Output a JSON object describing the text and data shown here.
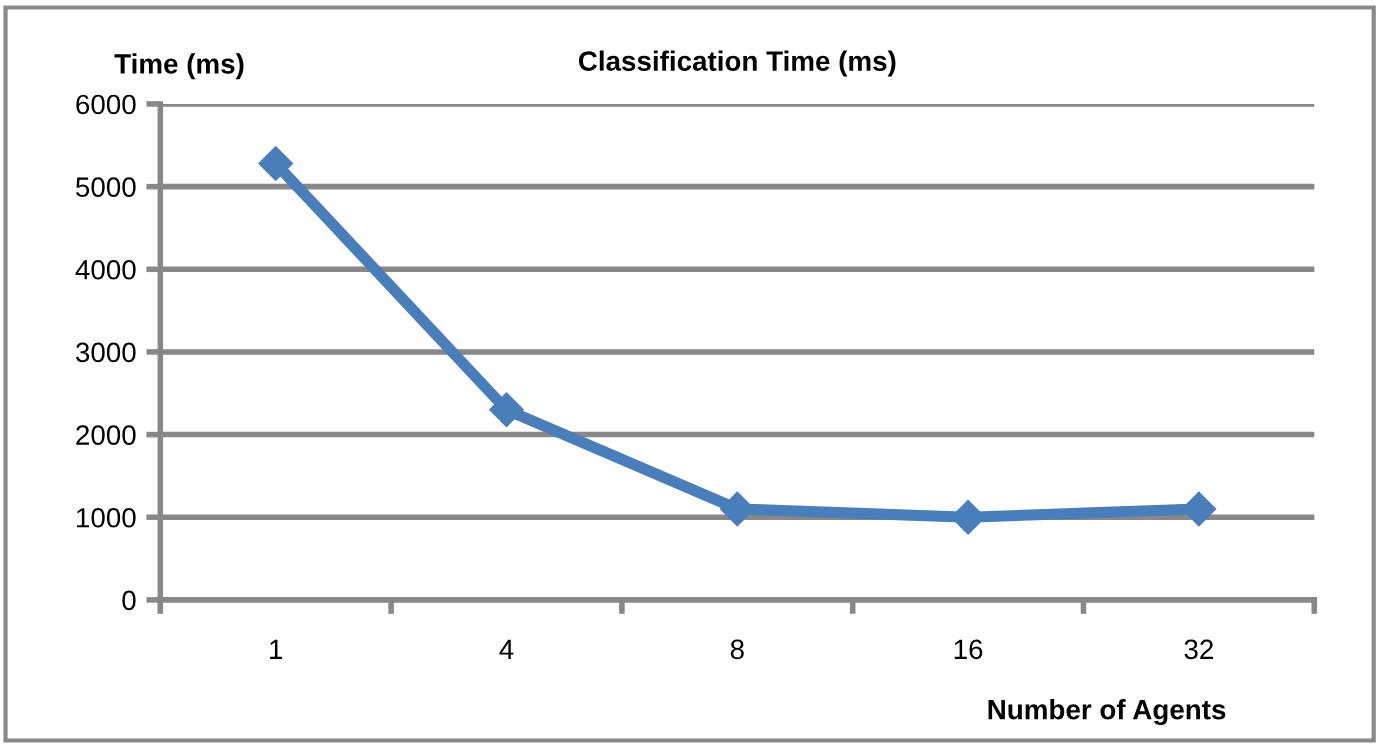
{
  "chart_data": {
    "type": "line",
    "title": "Classification Time (ms)",
    "ylabel": "Time (ms)",
    "xlabel": "Number of Agents",
    "categories": [
      "1",
      "4",
      "8",
      "16",
      "32"
    ],
    "series": [
      {
        "color": "#4a7ebb",
        "values": [
          5280,
          2300,
          1100,
          1000,
          1100
        ]
      }
    ],
    "ylim": [
      0,
      6000
    ],
    "yticks": [
      0,
      1000,
      2000,
      3000,
      4000,
      5000,
      6000
    ],
    "grid": "y",
    "marker": "diamond",
    "line_style": "solid",
    "legend": false
  }
}
